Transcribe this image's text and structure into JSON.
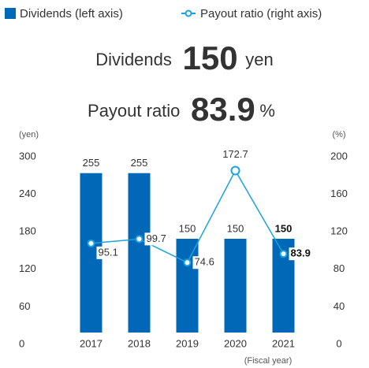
{
  "chart_data": {
    "type": "bar_line",
    "headlines": [
      {
        "label": "Dividends",
        "value": 150,
        "unit": "yen"
      },
      {
        "label": "Payout ratio",
        "value": 83.9,
        "unit": "%"
      }
    ],
    "y_label": "(yen)",
    "y2_label": "(%)",
    "x_label": "(Fiscal year)",
    "categories": [
      "2017",
      "2018",
      "2019",
      "2020",
      "2021"
    ],
    "series": [
      {
        "name": "Dividends (left axis)",
        "color": "#0068b7",
        "values": [
          255,
          255,
          150,
          150,
          150
        ]
      },
      {
        "name": "Payout ratio (right axis)",
        "color": "#1aa3e0",
        "axis": "y2",
        "values": [
          95.1,
          99.7,
          74.6,
          172.7,
          83.9
        ]
      }
    ],
    "ylim": [
      0,
      300
    ],
    "yticks": [
      0,
      60,
      120,
      180,
      240,
      300
    ],
    "y2lim": [
      0,
      200
    ],
    "y2ticks": [
      0,
      40,
      80,
      120,
      160,
      200
    ],
    "grid": false
  }
}
